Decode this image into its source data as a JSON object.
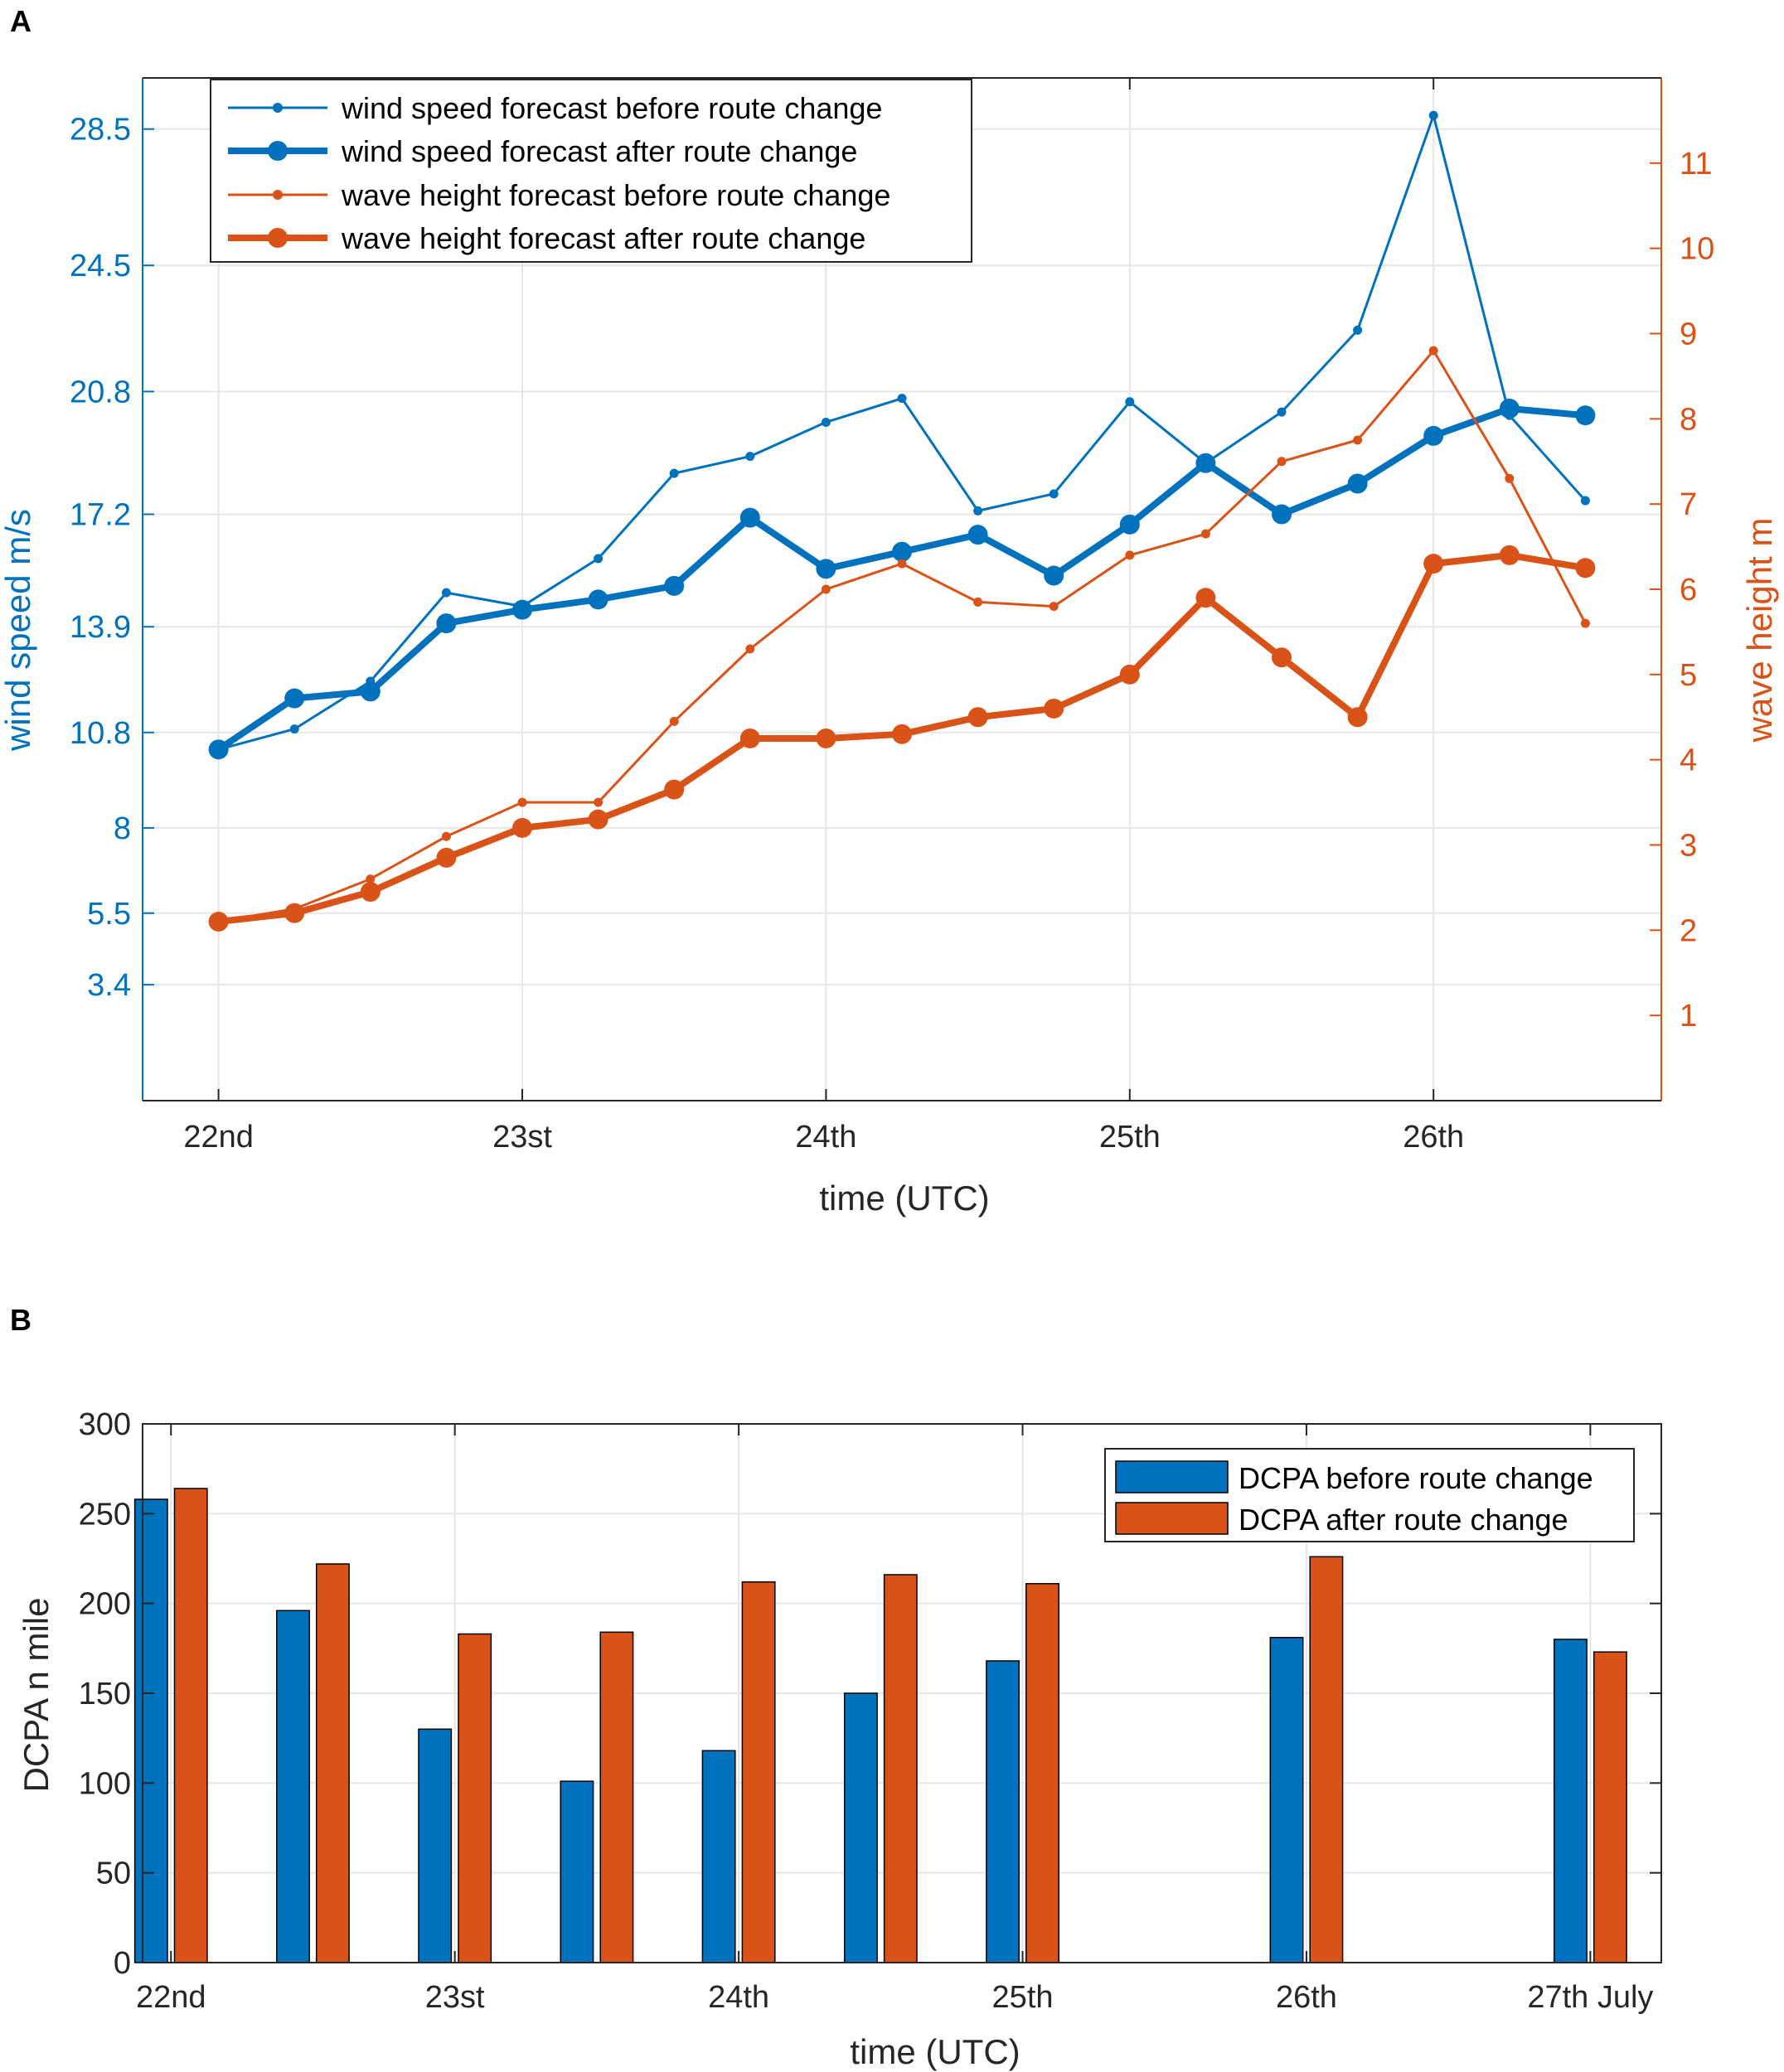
{
  "colors": {
    "blue": "#0072BD",
    "orange": "#D95319",
    "grid": "#E6E6E6",
    "axis": "#262626"
  },
  "chart_data": [
    {
      "panel_label": "A",
      "type": "line",
      "xlabel": "time (UTC)",
      "x_ticks": [
        0,
        1,
        2,
        3,
        4
      ],
      "x_tick_labels": [
        "22nd",
        "23st",
        "24th",
        "25th",
        "26th"
      ],
      "xlim": [
        -0.25,
        4.75
      ],
      "x": [
        0,
        0.25,
        0.5,
        0.75,
        1,
        1.25,
        1.5,
        1.75,
        2,
        2.25,
        2.5,
        2.75,
        3,
        3.25,
        3.5,
        3.75,
        4,
        4.25,
        4.5
      ],
      "left_axis": {
        "ylabel": "wind speed m/s",
        "ylim": [
          0,
          30
        ],
        "ticks": [
          3.4,
          5.5,
          8,
          10.8,
          13.9,
          17.2,
          20.8,
          24.5,
          28.5
        ],
        "tick_labels": [
          "3.4",
          "5.5",
          "8",
          "10.8",
          "13.9",
          "17.2",
          "20.8",
          "24.5",
          "28.5"
        ]
      },
      "right_axis": {
        "ylabel": "wave height m",
        "ylim": [
          0,
          12
        ],
        "ticks": [
          1,
          2,
          3,
          4,
          5,
          6,
          7,
          8,
          9,
          10,
          11
        ],
        "tick_labels": [
          "1",
          "2",
          "3",
          "4",
          "5",
          "6",
          "7",
          "8",
          "9",
          "10",
          "11"
        ]
      },
      "legend_position": "top-left",
      "series": [
        {
          "name": "wind speed forecast before route change",
          "axis": "left",
          "color": "blue",
          "style": "thin",
          "values": [
            10.3,
            10.9,
            12.3,
            14.9,
            14.5,
            15.9,
            18.4,
            18.9,
            19.9,
            20.6,
            17.3,
            17.8,
            20.5,
            18.7,
            20.2,
            22.6,
            28.9,
            20.1,
            17.6
          ]
        },
        {
          "name": "wind speed forecast after route change",
          "axis": "left",
          "color": "blue",
          "style": "thick",
          "values": [
            10.3,
            11.8,
            12.0,
            14.0,
            14.4,
            14.7,
            15.1,
            17.1,
            15.6,
            16.1,
            16.6,
            15.4,
            16.9,
            18.7,
            17.2,
            18.1,
            19.5,
            20.3,
            20.1
          ]
        },
        {
          "name": "wave height forecast before route change",
          "axis": "right",
          "color": "orange",
          "style": "thin",
          "values": [
            2.1,
            2.25,
            2.6,
            3.1,
            3.5,
            3.5,
            4.45,
            5.3,
            6.0,
            6.3,
            5.85,
            5.8,
            6.4,
            6.65,
            7.5,
            7.75,
            8.8,
            7.3,
            5.6
          ]
        },
        {
          "name": "wave height forecast after route change",
          "axis": "right",
          "color": "orange",
          "style": "thick",
          "values": [
            2.1,
            2.2,
            2.45,
            2.85,
            3.2,
            3.3,
            3.65,
            4.25,
            4.25,
            4.3,
            4.5,
            4.6,
            5.0,
            5.9,
            5.2,
            4.5,
            6.3,
            6.4,
            6.25
          ]
        }
      ]
    },
    {
      "panel_label": "B",
      "type": "bar",
      "xlabel": "time (UTC)",
      "ylabel": "DCPA n mile",
      "ylim": [
        0,
        300
      ],
      "y_ticks": [
        0,
        50,
        100,
        150,
        200,
        250,
        300
      ],
      "x_ticks": [
        0,
        1,
        2,
        3,
        4,
        5
      ],
      "x_tick_labels": [
        "22nd",
        "23st",
        "24th",
        "25th",
        "26th",
        "27th July"
      ],
      "xlim": [
        -0.1,
        5.25
      ],
      "bar_positions": [
        0,
        0.5,
        1,
        1.5,
        2,
        2.5,
        3,
        4,
        5
      ],
      "legend_position": "top-right",
      "series": [
        {
          "name": "DCPA before route change",
          "color": "blue",
          "values": [
            258,
            196,
            130,
            101,
            118,
            150,
            168,
            181,
            180
          ]
        },
        {
          "name": "DCPA after route change",
          "color": "orange",
          "values": [
            264,
            222,
            183,
            184,
            212,
            216,
            211,
            226,
            173
          ]
        }
      ]
    }
  ]
}
